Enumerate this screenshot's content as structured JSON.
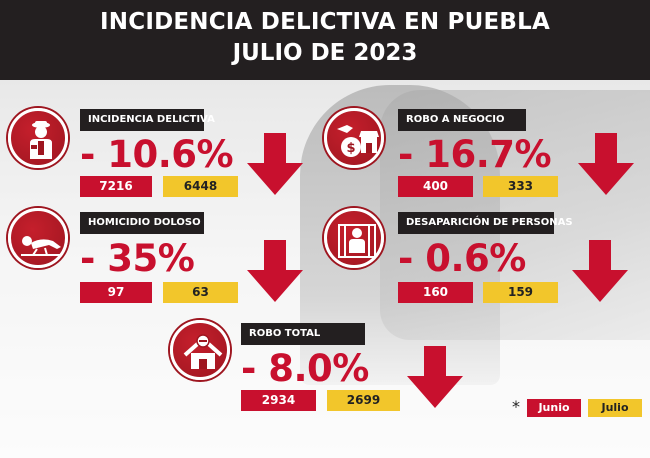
{
  "header": {
    "line1": "INCIDENCIA DELICTIVA EN PUEBLA",
    "line2": "JULIO DE 2023"
  },
  "cards": [
    {
      "title": "INCIDENCIA DELICTIVA",
      "change": "- 10.6%",
      "june": "7216",
      "july": "6448",
      "icon": "police-officer-icon"
    },
    {
      "title": "ROBO  A NEGOCIO",
      "change": "- 16.7%",
      "june": "400",
      "july": "333",
      "icon": "business-robbery-icon"
    },
    {
      "title": "HOMICIDIO DOLOSO",
      "change": "- 35%",
      "june": "97",
      "july": "63",
      "icon": "homicide-victim-icon"
    },
    {
      "title": "DESAPARICIÓN DE PERSONAS",
      "change": "- 0.6%",
      "june": "160",
      "july": "159",
      "icon": "missing-person-icon"
    },
    {
      "title": "ROBO TOTAL",
      "change": "- 8.0%",
      "june": "2934",
      "july": "2699",
      "icon": "house-robbery-icon"
    }
  ],
  "legend": {
    "star": "*",
    "june": "Junio",
    "july": "Julio"
  },
  "colors": {
    "red": "#c8102e",
    "yellow": "#f2c62b",
    "dark": "#231f20"
  }
}
